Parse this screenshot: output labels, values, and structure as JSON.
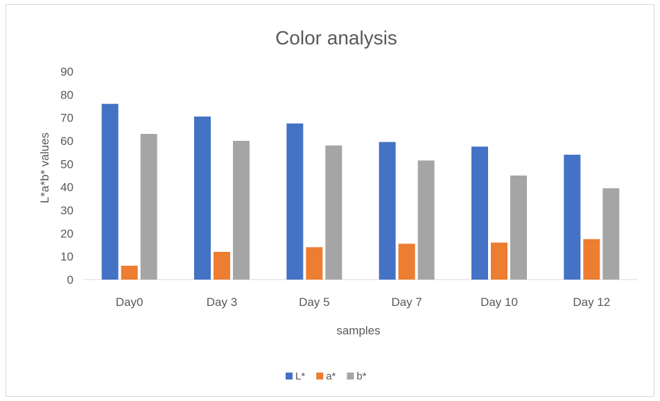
{
  "chart_data": {
    "type": "bar",
    "title": "Color analysis",
    "xlabel": "samples",
    "ylabel": "L*a*b* values",
    "categories": [
      "Day0",
      "Day 3",
      "Day 5",
      "Day 7",
      "Day 10",
      "Day 12"
    ],
    "series": [
      {
        "name": "L*",
        "color": "#4472c4",
        "values": [
          76,
          70.5,
          67.5,
          59.5,
          57.5,
          54
        ]
      },
      {
        "name": "a*",
        "color": "#ed7d31",
        "values": [
          6,
          12,
          14,
          15.5,
          16,
          17.5
        ]
      },
      {
        "name": "b*",
        "color": "#a5a5a5",
        "values": [
          63,
          60,
          58,
          51.5,
          45,
          39.5
        ]
      }
    ],
    "ylim": [
      0,
      90
    ],
    "yticks": [
      0,
      10,
      20,
      30,
      40,
      50,
      60,
      70,
      80,
      90
    ],
    "grid": false,
    "legend": "bottom"
  }
}
